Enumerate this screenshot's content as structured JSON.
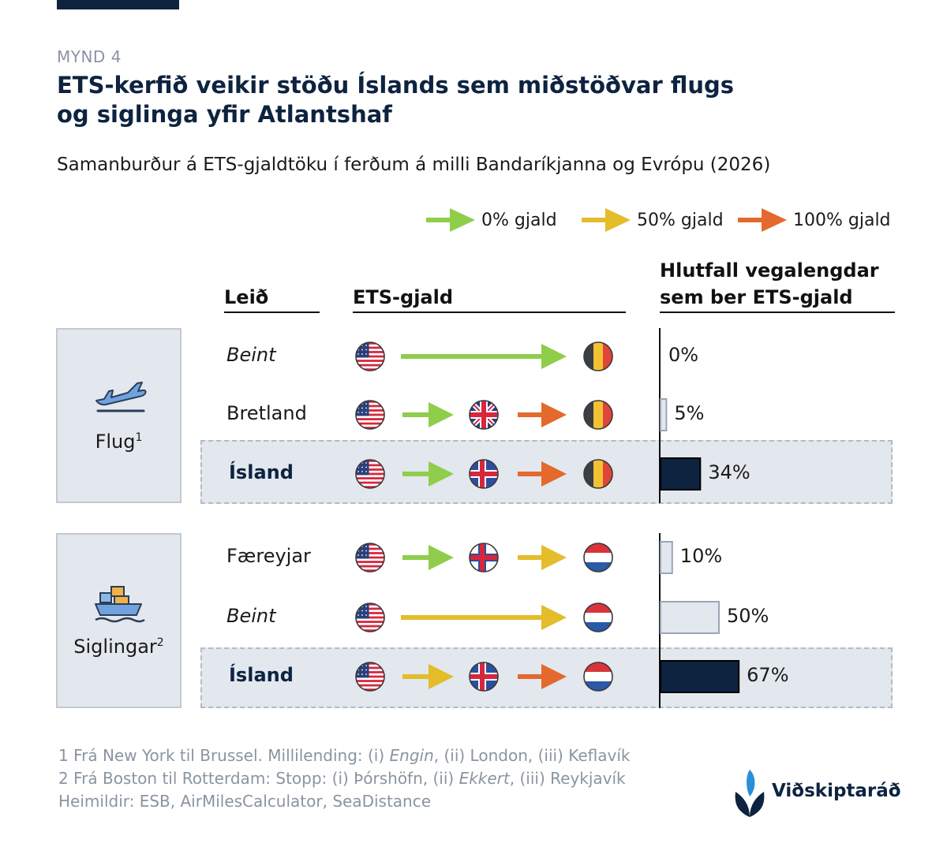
{
  "figure_number": "MYND 4",
  "title_line1": "ETS-kerfið veikir stöðu Íslands sem miðstöðvar flugs",
  "title_line2": "og siglinga yfir Atlantshaf",
  "subtitle": "Samanburður á ETS-gjaldtöku í ferðum á milli Bandaríkjanna og Evrópu (2026)",
  "colors": {
    "green": "#8fce4a",
    "yellow": "#e3bd2a",
    "orange": "#e4692c",
    "navy": "#0d2340",
    "highlight_bg": "#e3e7ee"
  },
  "legend": [
    {
      "label": "0% gjald",
      "color": "#8fce4a"
    },
    {
      "label": "50% gjald",
      "color": "#e3bd2a"
    },
    {
      "label": "100% gjald",
      "color": "#e4692c"
    }
  ],
  "columns": {
    "route": "Leið",
    "fee": "ETS-gjald",
    "share_line1": "Hlutfall vegalengdar",
    "share_line2": "sem ber ETS-gjald"
  },
  "groups": {
    "flight": {
      "label": "Flug",
      "sup": "1",
      "icon": "airplane-takeoff-icon"
    },
    "shipping": {
      "label": "Siglingar",
      "sup": "2",
      "icon": "cargo-ship-icon"
    }
  },
  "chart_data": {
    "type": "bar",
    "title": "ETS-kerfið veikir stöðu Íslands sem miðstöðvar flugs og siglinga yfir Atlantshaf",
    "categories": [
      "Beint",
      "Bretland",
      "Ísland",
      "Færeyjar",
      "Beint",
      "Ísland"
    ],
    "values": [
      0,
      5,
      34,
      10,
      50,
      67
    ],
    "unit": "%",
    "xlim": [
      0,
      100
    ],
    "rows": [
      {
        "group": "Flug",
        "route": "Beint",
        "style": "italic",
        "value": 0,
        "pct_label": "0%",
        "highlight": false,
        "flags": [
          "us-flag",
          "belgium-flag"
        ],
        "legs": [
          "green"
        ]
      },
      {
        "group": "Flug",
        "route": "Bretland",
        "style": "normal",
        "value": 5,
        "pct_label": "5%",
        "highlight": false,
        "flags": [
          "us-flag",
          "uk-flag",
          "belgium-flag"
        ],
        "legs": [
          "green",
          "orange"
        ]
      },
      {
        "group": "Flug",
        "route": "Ísland",
        "style": "bold",
        "value": 34,
        "pct_label": "34%",
        "highlight": true,
        "flags": [
          "us-flag",
          "iceland-flag",
          "belgium-flag"
        ],
        "legs": [
          "green",
          "orange"
        ]
      },
      {
        "group": "Siglingar",
        "route": "Færeyjar",
        "style": "normal",
        "value": 10,
        "pct_label": "10%",
        "highlight": false,
        "flags": [
          "us-flag",
          "faroe-flag",
          "netherlands-flag"
        ],
        "legs": [
          "green",
          "yellow"
        ]
      },
      {
        "group": "Siglingar",
        "route": "Beint",
        "style": "italic",
        "value": 50,
        "pct_label": "50%",
        "highlight": false,
        "flags": [
          "us-flag",
          "netherlands-flag"
        ],
        "legs": [
          "yellow"
        ]
      },
      {
        "group": "Siglingar",
        "route": "Ísland",
        "style": "bold",
        "value": 67,
        "pct_label": "67%",
        "highlight": true,
        "flags": [
          "us-flag",
          "iceland-flag",
          "netherlands-flag"
        ],
        "legs": [
          "yellow",
          "orange"
        ]
      }
    ]
  },
  "footnotes": {
    "f1_a": "1 Frá New York til Brussel. Millilending: (i) ",
    "f1_b": "Engin",
    "f1_c": ", (ii) London, (iii) Keflavík",
    "f2_a": "2 Frá Boston til Rotterdam: Stopp: (i) Þórshöfn, (ii) ",
    "f2_b": "Ekkert",
    "f2_c": ", (iii) Reykjavík",
    "sources": "Heimildir: ESB, AirMilesCalculator, SeaDistance"
  },
  "brand": {
    "name": "Viðskiptaráð",
    "icon": "vidskiptarad-logo-icon"
  }
}
